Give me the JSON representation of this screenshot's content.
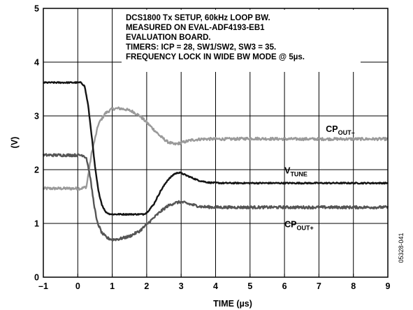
{
  "chart_data": {
    "type": "line",
    "xlabel": "TIME (µs)",
    "ylabel": "(V)",
    "xlim": [
      -1,
      9
    ],
    "ylim": [
      0,
      5
    ],
    "x_ticks": [
      -1,
      0,
      1,
      2,
      3,
      4,
      5,
      6,
      7,
      8,
      9
    ],
    "y_ticks": [
      0,
      1,
      2,
      3,
      4,
      5
    ],
    "x_tick_labels": [
      "–1",
      "0",
      "1",
      "2",
      "3",
      "4",
      "5",
      "6",
      "7",
      "8",
      "9"
    ],
    "y_tick_labels": [
      "0",
      "1",
      "2",
      "3",
      "4",
      "5"
    ],
    "grid": true,
    "annotation_lines": [
      "DCS1800 Tx SETUP, 60kHz LOOP BW.",
      "MEASURED ON EVAL-ADF4193-EB1",
      "EVALUATION BOARD.",
      "TIMERS: ICP = 28, SW1/SW2, SW3 = 35.",
      "FREQUENCY LOCK IN WIDE BW MODE @ 5µs."
    ],
    "figure_code": "05328-041",
    "series": [
      {
        "name": "CPOUT–",
        "label_main": "CP",
        "label_sub": "OUT–",
        "color": "#9a9a9a",
        "noise": 0.025,
        "x": [
          -1,
          0.1,
          0.25,
          0.4,
          0.6,
          0.8,
          1.0,
          1.2,
          1.4,
          1.6,
          1.8,
          2.0,
          2.2,
          2.4,
          2.6,
          2.8,
          3.0,
          3.3,
          3.6,
          4.0,
          4.5,
          5.0,
          6.0,
          7.0,
          8.0,
          9.0
        ],
        "y": [
          1.65,
          1.65,
          1.68,
          2.3,
          2.85,
          3.05,
          3.13,
          3.14,
          3.12,
          3.08,
          3.0,
          2.88,
          2.75,
          2.62,
          2.52,
          2.47,
          2.5,
          2.55,
          2.57,
          2.57,
          2.57,
          2.58,
          2.57,
          2.57,
          2.57,
          2.57
        ]
      },
      {
        "name": "VTUNE",
        "label_main": "V",
        "label_sub": "TUNE",
        "color": "#141414",
        "noise": 0.012,
        "x": [
          -1,
          0.1,
          0.2,
          0.3,
          0.4,
          0.5,
          0.6,
          0.7,
          0.8,
          0.9,
          1.0,
          1.5,
          1.9,
          2.0,
          2.2,
          2.4,
          2.6,
          2.8,
          2.95,
          3.2,
          3.5,
          3.8,
          4.2,
          5.0,
          6.0,
          7.0,
          8.0,
          9.0
        ],
        "y": [
          3.62,
          3.62,
          3.55,
          3.2,
          2.65,
          2.05,
          1.6,
          1.35,
          1.22,
          1.18,
          1.17,
          1.17,
          1.17,
          1.2,
          1.35,
          1.6,
          1.8,
          1.92,
          1.95,
          1.88,
          1.8,
          1.76,
          1.75,
          1.75,
          1.75,
          1.75,
          1.75,
          1.75
        ]
      },
      {
        "name": "CPOUT+",
        "label_main": "CP",
        "label_sub": "OUT+",
        "color": "#555555",
        "noise": 0.025,
        "x": [
          -1,
          0.15,
          0.25,
          0.35,
          0.45,
          0.55,
          0.7,
          0.85,
          1.0,
          1.2,
          1.5,
          1.8,
          2.0,
          2.2,
          2.4,
          2.6,
          2.8,
          3.0,
          3.3,
          3.6,
          4.0,
          4.5,
          5.0,
          6.0,
          7.0,
          8.0,
          9.0
        ],
        "y": [
          2.27,
          2.27,
          2.22,
          1.9,
          1.45,
          1.05,
          0.82,
          0.73,
          0.7,
          0.71,
          0.76,
          0.86,
          0.98,
          1.1,
          1.22,
          1.32,
          1.38,
          1.4,
          1.35,
          1.31,
          1.3,
          1.3,
          1.3,
          1.3,
          1.3,
          1.3,
          1.3
        ]
      }
    ],
    "series_label_positions": [
      {
        "series": "CPOUT–",
        "x": 7.2,
        "y": 2.7
      },
      {
        "series": "VTUNE",
        "x": 6.0,
        "y": 1.93
      },
      {
        "series": "CPOUT+",
        "x": 6.0,
        "y": 0.93
      }
    ]
  }
}
